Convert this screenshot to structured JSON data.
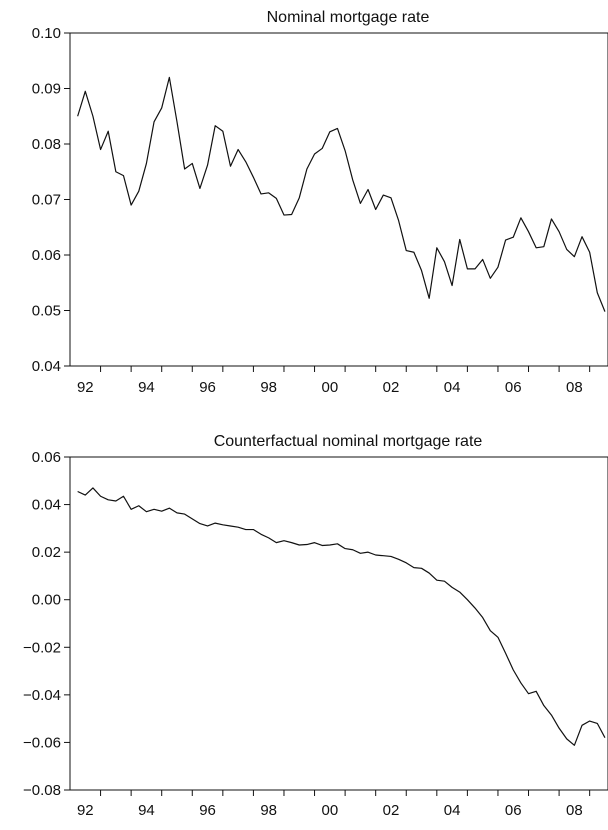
{
  "chart_data": [
    {
      "type": "line",
      "title": "Nominal mortgage rate",
      "xlabel": "",
      "ylabel": "",
      "x_ticks": [
        "92",
        "94",
        "96",
        "98",
        "00",
        "02",
        "04",
        "06",
        "08"
      ],
      "y_ticks": [
        "0.10",
        "0.09",
        "0.08",
        "0.07",
        "0.06",
        "0.05",
        "0.04"
      ],
      "ylim": [
        0.04,
        0.1
      ],
      "xlim": [
        1991.5,
        2009.1
      ],
      "grid": false,
      "series": [
        {
          "x": [
            1991.75,
            1992.0,
            1992.25,
            1992.5,
            1992.75,
            1993.0,
            1993.25,
            1993.5,
            1993.75,
            1994.0,
            1994.25,
            1994.5,
            1994.75,
            1995.0,
            1995.25,
            1995.5,
            1995.75,
            1996.0,
            1996.25,
            1996.5,
            1996.75,
            1997.0,
            1997.25,
            1997.5,
            1997.75,
            1998.0,
            1998.25,
            1998.5,
            1998.75,
            1999.0,
            1999.25,
            1999.5,
            1999.75,
            2000.0,
            2000.25,
            2000.5,
            2000.75,
            2001.0,
            2001.25,
            2001.5,
            2001.75,
            2002.0,
            2002.25,
            2002.5,
            2002.75,
            2003.0,
            2003.25,
            2003.5,
            2003.75,
            2004.0,
            2004.25,
            2004.5,
            2004.75,
            2005.0,
            2005.25,
            2005.5,
            2005.75,
            2006.0,
            2006.25,
            2006.5,
            2006.75,
            2007.0,
            2007.25,
            2007.5,
            2007.75,
            2008.0,
            2008.25,
            2008.5,
            2008.75,
            2009.0
          ],
          "y": [
            0.085,
            0.0895,
            0.085,
            0.079,
            0.0823,
            0.075,
            0.0743,
            0.069,
            0.0715,
            0.0765,
            0.084,
            0.0865,
            0.092,
            0.084,
            0.0755,
            0.0765,
            0.072,
            0.0762,
            0.0833,
            0.0823,
            0.076,
            0.079,
            0.0768,
            0.074,
            0.071,
            0.0712,
            0.0702,
            0.0672,
            0.0673,
            0.0703,
            0.0755,
            0.0782,
            0.0792,
            0.0822,
            0.0828,
            0.0788,
            0.0735,
            0.0693,
            0.0718,
            0.0682,
            0.0708,
            0.0703,
            0.0662,
            0.0608,
            0.0605,
            0.0572,
            0.0522,
            0.0613,
            0.0588,
            0.0545,
            0.0628,
            0.0575,
            0.0575,
            0.0592,
            0.0558,
            0.0578,
            0.0627,
            0.0632,
            0.0667,
            0.0642,
            0.0613,
            0.0615,
            0.0665,
            0.0642,
            0.061,
            0.0597,
            0.0633,
            0.0605,
            0.0532,
            0.0498
          ]
        }
      ]
    },
    {
      "type": "line",
      "title": "Counterfactual nominal mortgage rate",
      "xlabel": "",
      "ylabel": "",
      "x_ticks": [
        "92",
        "94",
        "96",
        "98",
        "00",
        "02",
        "04",
        "06",
        "08"
      ],
      "y_ticks": [
        "0.06",
        "0.04",
        "0.02",
        "0.00",
        "−0.02",
        "−0.04",
        "−0.06",
        "−0.08"
      ],
      "ylim": [
        -0.08,
        0.06
      ],
      "xlim": [
        1991.5,
        2009.1
      ],
      "grid": false,
      "series": [
        {
          "x": [
            1991.75,
            1992.0,
            1992.25,
            1992.5,
            1992.75,
            1993.0,
            1993.25,
            1993.5,
            1993.75,
            1994.0,
            1994.25,
            1994.5,
            1994.75,
            1995.0,
            1995.25,
            1995.5,
            1995.75,
            1996.0,
            1996.25,
            1996.5,
            1996.75,
            1997.0,
            1997.25,
            1997.5,
            1997.75,
            1998.0,
            1998.25,
            1998.5,
            1998.75,
            1999.0,
            1999.25,
            1999.5,
            1999.75,
            2000.0,
            2000.25,
            2000.5,
            2000.75,
            2001.0,
            2001.25,
            2001.5,
            2001.75,
            2002.0,
            2002.25,
            2002.5,
            2002.75,
            2003.0,
            2003.25,
            2003.5,
            2003.75,
            2004.0,
            2004.25,
            2004.5,
            2004.75,
            2005.0,
            2005.25,
            2005.5,
            2005.75,
            2006.0,
            2006.25,
            2006.5,
            2006.75,
            2007.0,
            2007.25,
            2007.5,
            2007.75,
            2008.0,
            2008.25,
            2008.5,
            2008.75,
            2009.0
          ],
          "y": [
            0.0455,
            0.044,
            0.047,
            0.0435,
            0.042,
            0.0415,
            0.0435,
            0.038,
            0.0395,
            0.037,
            0.038,
            0.0372,
            0.0385,
            0.0365,
            0.036,
            0.034,
            0.032,
            0.031,
            0.0322,
            0.0315,
            0.031,
            0.0305,
            0.0295,
            0.0295,
            0.0275,
            0.026,
            0.024,
            0.0248,
            0.024,
            0.023,
            0.0232,
            0.024,
            0.0228,
            0.023,
            0.0235,
            0.0215,
            0.021,
            0.0195,
            0.02,
            0.0188,
            0.0185,
            0.0182,
            0.017,
            0.0155,
            0.0135,
            0.0132,
            0.0112,
            0.0082,
            0.0078,
            0.0052,
            0.0032,
            0.0,
            -0.0035,
            -0.0075,
            -0.013,
            -0.0158,
            -0.0225,
            -0.0295,
            -0.035,
            -0.0395,
            -0.0385,
            -0.0445,
            -0.0485,
            -0.054,
            -0.0585,
            -0.0612,
            -0.0528,
            -0.051,
            -0.052,
            -0.058
          ]
        }
      ]
    }
  ]
}
